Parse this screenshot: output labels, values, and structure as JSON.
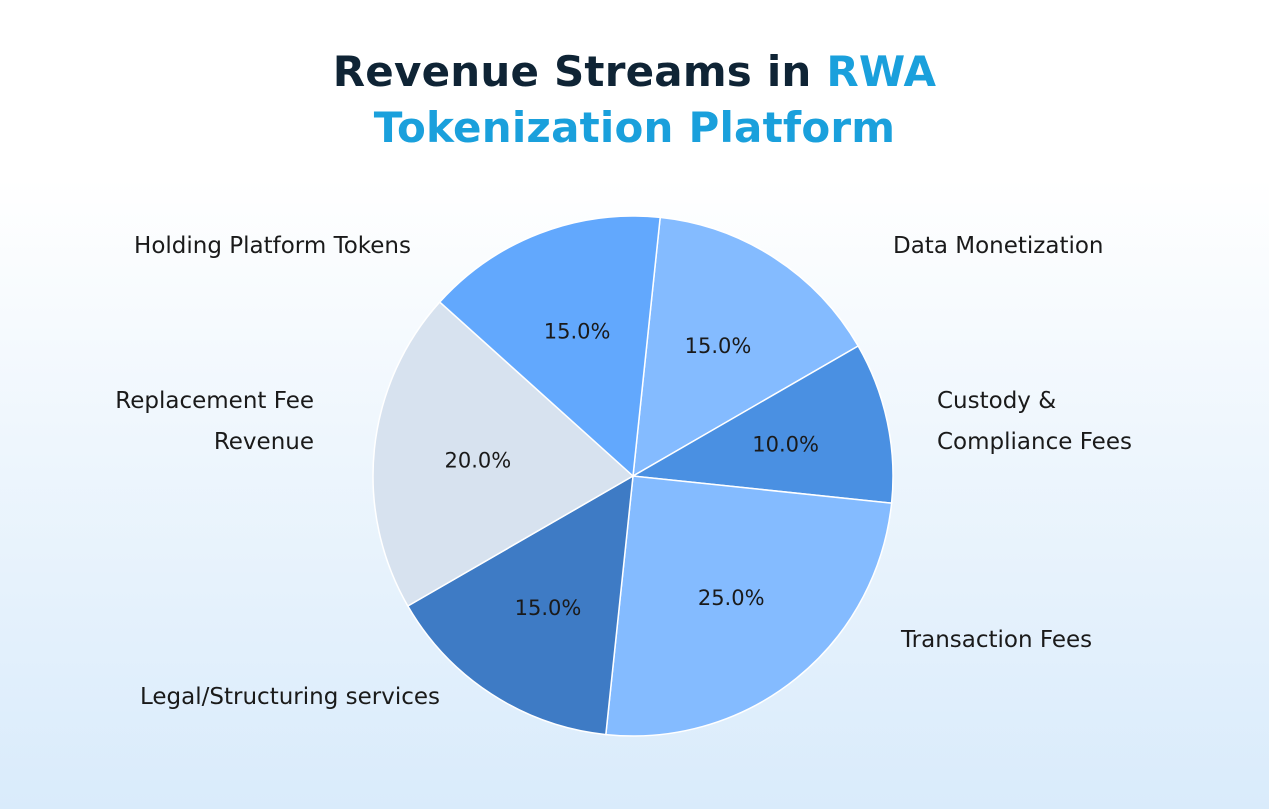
{
  "chart_data": {
    "type": "pie",
    "title_main": "Revenue Streams in",
    "title_accent_1": "RWA",
    "title_accent_2": "Tokenization Platform",
    "categories": [
      "Data Monetization",
      "Custody & Compliance Fees",
      "Transaction Fees",
      "Legal/Structuring services",
      "Replacement Fee Revenue",
      "Holding Platform Tokens"
    ],
    "values": [
      15.0,
      10.0,
      25.0,
      15.0,
      20.0,
      15.0
    ],
    "value_labels": [
      "15.0%",
      "10.0%",
      "25.0%",
      "15.0%",
      "20.0%",
      "15.0%"
    ],
    "label_lines": [
      [
        "Data Monetization"
      ],
      [
        "Custody &",
        "Compliance Fees"
      ],
      [
        "Transaction Fees"
      ],
      [
        "Legal/Structuring services"
      ],
      [
        "Replacement Fee",
        "Revenue"
      ],
      [
        "Holding Platform Tokens"
      ]
    ],
    "colors": [
      "#84bbff",
      "#4a90e2",
      "#84bbff",
      "#3e7bc5",
      "#d7e2ef",
      "#62a8fd"
    ],
    "start_angle_deg": 84,
    "direction": "clockwise",
    "legend": "none"
  }
}
